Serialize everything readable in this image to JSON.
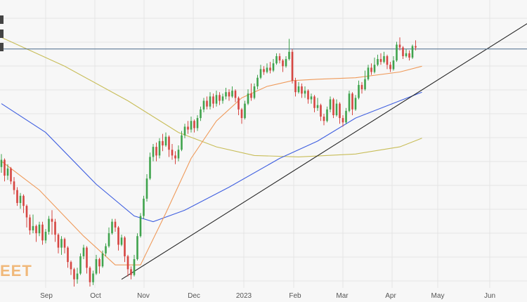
{
  "chart_data": {
    "type": "candlestick",
    "watermark": "EET",
    "x_labels": [
      "Sep",
      "Oct",
      "Nov",
      "Dec",
      "2023",
      "Feb",
      "Mar",
      "Apr",
      "May",
      "Jun"
    ],
    "y_range": [
      0,
      100
    ],
    "grid": true,
    "horizontal_level": 83,
    "colors": {
      "up": "#3fa34d",
      "down": "#d64541",
      "ma_fast": "#ef9a5a",
      "ma_mid": "#3f5fe0",
      "ma_slow": "#c8bd58",
      "resistance": "#4a6a8a",
      "trendline": "#222222",
      "background": "#f7f7f7"
    },
    "candles": [
      [
        42.0,
        44.5,
        46.5,
        40.0
      ],
      [
        44.5,
        39.0,
        45.0,
        37.0
      ],
      [
        39.0,
        41.5,
        43.0,
        37.5
      ],
      [
        41.5,
        37.0,
        42.0,
        36.0
      ],
      [
        37.0,
        34.0,
        38.5,
        32.5
      ],
      [
        34.0,
        29.5,
        35.0,
        28.5
      ],
      [
        29.5,
        32.0,
        33.0,
        27.5
      ],
      [
        32.0,
        28.5,
        32.5,
        26.0
      ],
      [
        28.5,
        24.5,
        29.0,
        21.0
      ],
      [
        24.5,
        20.0,
        25.5,
        18.5
      ],
      [
        20.0,
        21.5,
        25.5,
        19.0
      ],
      [
        21.5,
        19.0,
        22.0,
        16.0
      ],
      [
        19.0,
        22.0,
        23.0,
        18.0
      ],
      [
        22.0,
        16.5,
        23.0,
        15.0
      ],
      [
        16.5,
        19.5,
        20.5,
        15.5
      ],
      [
        19.5,
        24.0,
        25.0,
        18.5
      ],
      [
        24.0,
        23.0,
        27.0,
        18.5
      ],
      [
        23.0,
        18.5,
        24.0,
        16.0
      ],
      [
        18.5,
        14.0,
        19.0,
        12.0
      ],
      [
        14.0,
        17.0,
        18.0,
        11.5
      ],
      [
        17.0,
        14.0,
        17.5,
        12.0
      ],
      [
        14.0,
        9.0,
        14.5,
        7.0
      ],
      [
        9.0,
        6.5,
        9.5,
        4.5
      ],
      [
        6.5,
        3.0,
        7.0,
        0.5
      ],
      [
        3.0,
        5.0,
        7.0,
        1.5
      ],
      [
        5.0,
        11.0,
        12.0,
        4.5
      ],
      [
        11.0,
        14.0,
        15.0,
        10.0
      ],
      [
        14.0,
        7.0,
        14.5,
        5.0
      ],
      [
        7.0,
        2.0,
        7.5,
        0.5
      ],
      [
        2.0,
        5.0,
        6.0,
        1.0
      ],
      [
        5.0,
        10.0,
        11.5,
        4.5
      ],
      [
        10.0,
        7.5,
        10.5,
        5.0
      ],
      [
        7.5,
        12.0,
        13.0,
        7.0
      ],
      [
        12.0,
        14.5,
        15.5,
        11.0
      ],
      [
        14.5,
        19.0,
        21.0,
        14.0
      ],
      [
        19.0,
        23.0,
        24.0,
        18.5
      ],
      [
        23.0,
        21.0,
        24.0,
        19.5
      ],
      [
        21.0,
        15.0,
        21.5,
        13.0
      ],
      [
        15.0,
        17.5,
        18.5,
        14.5
      ],
      [
        17.5,
        11.0,
        18.0,
        9.0
      ],
      [
        11.0,
        6.5,
        11.5,
        4.0
      ],
      [
        6.5,
        4.5,
        7.5,
        3.0
      ],
      [
        4.5,
        10.0,
        11.5,
        4.0
      ],
      [
        10.0,
        18.0,
        19.0,
        9.5
      ],
      [
        18.0,
        25.0,
        26.0,
        17.5
      ],
      [
        25.0,
        31.0,
        32.0,
        24.0
      ],
      [
        31.0,
        38.0,
        39.5,
        30.0
      ],
      [
        38.0,
        45.5,
        47.0,
        37.5
      ],
      [
        45.5,
        49.0,
        50.0,
        44.0
      ],
      [
        49.0,
        46.0,
        50.5,
        44.0
      ],
      [
        46.0,
        51.0,
        52.0,
        45.0
      ],
      [
        51.0,
        49.5,
        53.5,
        47.5
      ],
      [
        49.5,
        52.5,
        54.0,
        49.0
      ],
      [
        52.5,
        48.0,
        53.0,
        45.5
      ],
      [
        48.0,
        46.0,
        50.0,
        44.5
      ],
      [
        46.0,
        45.0,
        47.5,
        43.0
      ],
      [
        45.0,
        48.0,
        49.5,
        44.0
      ],
      [
        48.0,
        53.0,
        54.5,
        47.5
      ],
      [
        53.0,
        56.0,
        57.0,
        52.0
      ],
      [
        56.0,
        55.0,
        58.0,
        53.5
      ],
      [
        55.0,
        58.0,
        59.5,
        54.0
      ],
      [
        58.0,
        55.5,
        58.5,
        54.0
      ],
      [
        55.5,
        59.0,
        60.0,
        54.5
      ],
      [
        59.0,
        62.0,
        63.0,
        58.0
      ],
      [
        62.0,
        65.0,
        66.0,
        61.0
      ],
      [
        65.0,
        63.0,
        66.5,
        62.0
      ],
      [
        63.0,
        66.5,
        68.0,
        62.0
      ],
      [
        66.5,
        64.0,
        67.5,
        62.5
      ],
      [
        64.0,
        67.0,
        68.5,
        63.0
      ],
      [
        67.0,
        65.0,
        68.0,
        63.5
      ],
      [
        65.0,
        66.5,
        67.5,
        64.0
      ],
      [
        66.5,
        68.0,
        69.5,
        65.5
      ],
      [
        68.0,
        66.5,
        69.0,
        65.0
      ],
      [
        66.5,
        68.5,
        70.0,
        66.0
      ],
      [
        68.5,
        66.0,
        69.0,
        64.5
      ],
      [
        66.0,
        62.0,
        66.5,
        60.0
      ],
      [
        62.0,
        59.0,
        62.5,
        57.0
      ],
      [
        59.0,
        64.0,
        65.0,
        58.5
      ],
      [
        64.0,
        67.5,
        69.0,
        63.5
      ],
      [
        67.5,
        66.0,
        71.0,
        65.0
      ],
      [
        66.0,
        70.0,
        71.0,
        65.5
      ],
      [
        70.0,
        73.0,
        74.0,
        69.0
      ],
      [
        73.0,
        76.0,
        77.5,
        72.5
      ],
      [
        76.0,
        75.0,
        77.0,
        74.0
      ],
      [
        75.0,
        76.5,
        78.0,
        74.5
      ],
      [
        76.5,
        75.5,
        78.5,
        74.5
      ],
      [
        75.5,
        78.0,
        79.5,
        75.0
      ],
      [
        78.0,
        80.5,
        81.5,
        77.5
      ],
      [
        80.5,
        79.0,
        81.5,
        78.0
      ],
      [
        79.0,
        77.0,
        79.5,
        75.0
      ],
      [
        77.0,
        79.5,
        80.5,
        76.5
      ],
      [
        79.5,
        82.0,
        86.5,
        79.0
      ],
      [
        82.0,
        72.0,
        83.0,
        71.0
      ],
      [
        72.0,
        68.0,
        73.0,
        66.5
      ],
      [
        68.0,
        70.0,
        71.5,
        67.5
      ],
      [
        70.0,
        67.5,
        71.0,
        66.0
      ],
      [
        67.5,
        68.5,
        70.0,
        66.0
      ],
      [
        68.5,
        65.5,
        69.0,
        64.0
      ],
      [
        65.5,
        66.5,
        67.5,
        64.0
      ],
      [
        66.5,
        62.5,
        67.0,
        61.0
      ],
      [
        62.5,
        63.5,
        66.0,
        61.5
      ],
      [
        63.5,
        59.5,
        64.0,
        58.0
      ],
      [
        59.5,
        58.0,
        60.5,
        56.5
      ],
      [
        58.0,
        62.0,
        63.0,
        57.5
      ],
      [
        62.0,
        65.5,
        66.5,
        61.0
      ],
      [
        65.5,
        60.0,
        66.0,
        59.0
      ],
      [
        60.0,
        64.0,
        65.5,
        59.5
      ],
      [
        64.0,
        59.0,
        64.5,
        57.0
      ],
      [
        59.0,
        57.5,
        60.0,
        56.0
      ],
      [
        57.5,
        61.5,
        62.5,
        57.0
      ],
      [
        61.5,
        67.5,
        68.5,
        61.0
      ],
      [
        67.5,
        62.0,
        68.0,
        60.0
      ],
      [
        62.0,
        66.0,
        67.0,
        61.5
      ],
      [
        66.0,
        70.5,
        72.0,
        65.5
      ],
      [
        70.5,
        69.0,
        71.5,
        67.5
      ],
      [
        69.0,
        72.5,
        75.5,
        68.5
      ],
      [
        72.5,
        76.5,
        77.5,
        72.0
      ],
      [
        76.5,
        75.0,
        78.0,
        74.0
      ],
      [
        75.0,
        77.5,
        80.0,
        74.5
      ],
      [
        77.5,
        79.5,
        81.0,
        77.0
      ],
      [
        79.5,
        78.5,
        81.5,
        77.5
      ],
      [
        78.5,
        80.5,
        82.0,
        78.0
      ],
      [
        80.5,
        77.5,
        81.0,
        76.0
      ],
      [
        77.5,
        76.0,
        78.5,
        75.0
      ],
      [
        76.0,
        79.0,
        80.5,
        75.5
      ],
      [
        79.0,
        84.5,
        85.5,
        78.5
      ],
      [
        84.5,
        83.5,
        87.0,
        82.5
      ],
      [
        83.5,
        80.5,
        84.0,
        79.5
      ],
      [
        80.5,
        81.5,
        83.0,
        80.0
      ],
      [
        81.5,
        80.0,
        82.5,
        79.0
      ],
      [
        80.0,
        84.0,
        84.5,
        79.5
      ],
      [
        84.0,
        83.5,
        86.0,
        82.5
      ]
    ],
    "ma_fast": [
      [
        0,
        44
      ],
      [
        12,
        34
      ],
      [
        26,
        18
      ],
      [
        36,
        8
      ],
      [
        44,
        8
      ],
      [
        52,
        26
      ],
      [
        60,
        45
      ],
      [
        68,
        58
      ],
      [
        76,
        66
      ],
      [
        84,
        70
      ],
      [
        92,
        72
      ],
      [
        100,
        72.5
      ],
      [
        112,
        73
      ],
      [
        126,
        75
      ],
      [
        133,
        77
      ]
    ],
    "ma_mid": [
      [
        0,
        64
      ],
      [
        14,
        54
      ],
      [
        30,
        36
      ],
      [
        42,
        25
      ],
      [
        48,
        23
      ],
      [
        58,
        27
      ],
      [
        72,
        35
      ],
      [
        88,
        45
      ],
      [
        100,
        51
      ],
      [
        112,
        59
      ],
      [
        126,
        65
      ],
      [
        133,
        68
      ]
    ],
    "ma_slow": [
      [
        0,
        87
      ],
      [
        20,
        77
      ],
      [
        40,
        65
      ],
      [
        56,
        54
      ],
      [
        68,
        49
      ],
      [
        80,
        46
      ],
      [
        94,
        45.5
      ],
      [
        112,
        46.5
      ],
      [
        126,
        49
      ],
      [
        133,
        52
      ]
    ],
    "trendline": [
      [
        38,
        3
      ],
      [
        168,
        93
      ]
    ]
  }
}
